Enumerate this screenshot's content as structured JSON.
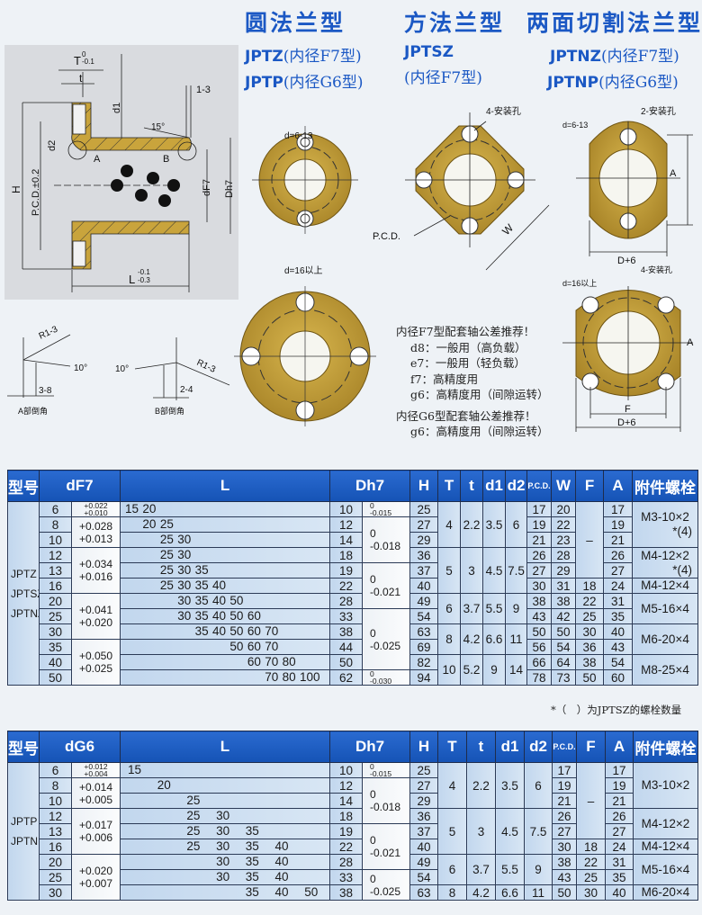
{
  "header": {
    "titles": [
      "圆法兰型",
      "方法兰型",
      "两面切割法兰型"
    ],
    "round": {
      "line1_model": "JPTZ",
      "line1_paren": "(内径F7型)",
      "line2_model": "JPTP",
      "line2_paren": "(内径G6型)"
    },
    "square": {
      "line1_model": "JPTSZ",
      "line2_paren": "(内径F7型)"
    },
    "cut": {
      "line1_model": "JPTNZ",
      "line1_paren": "(内径F7型)",
      "line2_model": "JPTNP",
      "line2_paren": "(内径G6型)"
    }
  },
  "section_drawing": {
    "T": "T",
    "T_tol_upper": "0",
    "T_tol_lower": "-0.1",
    "t": "t",
    "gap": "1-3",
    "d1": "d1",
    "angle": "15°",
    "d2": "d2",
    "A": "A",
    "B": "B",
    "H": "H",
    "pcd": "P.C.D.±0.2",
    "dF7": "dF7",
    "Dh7": "Dh7",
    "L": "L",
    "L_tol_upper": "-0.1",
    "L_tol_lower": "-0.3"
  },
  "chamfer": {
    "a": {
      "radius": "R1-3",
      "angle": "10°",
      "length": "3-8",
      "caption": "A部倒角"
    },
    "b": {
      "radius": "R1-3",
      "angle": "10°",
      "length": "2-4",
      "caption": "B部倒角"
    }
  },
  "flange_labels": {
    "round_small": "d=6-13",
    "round_large": "d=16以上",
    "square_holes": "4-安装孔",
    "square_pcd": "P.C.D.",
    "square_w": "W",
    "cut_small_d": "d=6-13",
    "cut_small_holes": "2-安装孔",
    "cut_small_a": "A",
    "cut_small_d6": "D+6",
    "cut_large_d": "d=16以上",
    "cut_large_holes": "4-安装孔",
    "cut_large_f": "F",
    "cut_large_d6": "D+6",
    "cut_large_a": "A"
  },
  "colors": {
    "brass": "#c9a43c",
    "header_blue": "#1b58c4",
    "table_header": "#1f5fc4",
    "cell_blue": "#c9dcef"
  },
  "notes": {
    "f7_title": "内径F7型配套轴公差推荐！",
    "f7_items": [
      "d8：一般用（高负载）",
      "e7：一般用（轻负载）",
      "f7：高精度用",
      "g6：高精度用（间隙运转）"
    ],
    "g6_title": "内径G6型配套轴公差推荐！",
    "g6_items": [
      "g6：高精度用（间隙运转）"
    ]
  },
  "table_f7": {
    "headers": [
      "型号",
      "dF7",
      "L",
      "Dh7",
      "H",
      "T",
      "t",
      "d1",
      "d2",
      "P.C.D.",
      "W",
      "F",
      "A",
      "附件螺栓"
    ],
    "models": [
      "JPTZ",
      "JPTSZ",
      "JPTNZ"
    ],
    "d": [
      "6",
      "8",
      "10",
      "12",
      "13",
      "16",
      "20",
      "25",
      "30",
      "35",
      "40",
      "50"
    ],
    "d_tol": [
      {
        "span": 1,
        "upper": "+0.022",
        "lower": "+0.010"
      },
      {
        "span": 2,
        "upper": "+0.028",
        "lower": "+0.013"
      },
      {
        "span": 3,
        "upper": "+0.034",
        "lower": "+0.016"
      },
      {
        "span": 3,
        "upper": "+0.041",
        "lower": "+0.020"
      },
      {
        "span": 3,
        "upper": "+0.050",
        "lower": "+0.025"
      }
    ],
    "L": [
      [
        "15",
        "20"
      ],
      [
        "20",
        "25"
      ],
      [
        "25",
        "30"
      ],
      [
        "25",
        "30"
      ],
      [
        "25",
        "30",
        "35"
      ],
      [
        "25",
        "30",
        "35",
        "40"
      ],
      [
        "30",
        "35",
        "40",
        "50"
      ],
      [
        "30",
        "35",
        "40",
        "50",
        "60"
      ],
      [
        "35",
        "40",
        "50",
        "60",
        "70"
      ],
      [
        "50",
        "60",
        "70"
      ],
      [
        "60",
        "70",
        "80"
      ],
      [
        "70",
        "80",
        "100"
      ]
    ],
    "D": [
      "10",
      "12",
      "14",
      "18",
      "19",
      "22",
      "28",
      "33",
      "38",
      "44",
      "50",
      "62"
    ],
    "D_tol": [
      {
        "span": 1,
        "upper": "0",
        "lower": "-0.015"
      },
      {
        "span": 3,
        "upper": "0",
        "lower": "-0.018"
      },
      {
        "span": 3,
        "upper": "0",
        "lower": "-0.021"
      },
      {
        "span": 4,
        "upper": "0",
        "lower": "-0.025"
      },
      {
        "span": 1,
        "upper": "0",
        "lower": "-0.030"
      }
    ],
    "H": [
      "25",
      "27",
      "29",
      "36",
      "37",
      "40",
      "49",
      "54",
      "63",
      "69",
      "82",
      "94"
    ],
    "groups": [
      {
        "span": 3,
        "T": "4",
        "t": "2.2",
        "d1": "3.5",
        "d2": "6"
      },
      {
        "span": 3,
        "T": "5",
        "t": "3",
        "d1": "4.5",
        "d2": "7.5"
      },
      {
        "span": 2,
        "T": "6",
        "t": "3.7",
        "d1": "5.5",
        "d2": "9"
      },
      {
        "span": 2,
        "T": "8",
        "t": "4.2",
        "d1": "6.6",
        "d2": "11"
      },
      {
        "span": 2,
        "T": "10",
        "t": "5.2",
        "d1": "9",
        "d2": "14"
      }
    ],
    "pcd": [
      "17",
      "19",
      "21",
      "26",
      "27",
      "30",
      "38",
      "43",
      "50",
      "56",
      "66",
      "78"
    ],
    "W": [
      "20",
      "22",
      "23",
      "28",
      "29",
      "31",
      "38",
      "42",
      "50",
      "54",
      "64",
      "73"
    ],
    "F_dash": "–",
    "F": [
      "18",
      "22",
      "25",
      "30",
      "36",
      "38",
      "50"
    ],
    "A": [
      "17",
      "19",
      "21",
      "26",
      "27",
      "24",
      "31",
      "35",
      "40",
      "43",
      "54",
      "60"
    ],
    "bolts": [
      {
        "span": 3,
        "text": "M3-10×2",
        "note": "*(4)"
      },
      {
        "span": 2,
        "text": "M4-12×2",
        "note": "*(4)"
      },
      {
        "span": 1,
        "text": "M4-12×4"
      },
      {
        "span": 2,
        "text": "M5-16×4"
      },
      {
        "span": 2,
        "text": "M6-20×4"
      },
      {
        "span": 2,
        "text": "M8-25×4"
      }
    ],
    "footnote": "*（　）为JPTSZ的螺栓数量"
  },
  "table_g6": {
    "headers": [
      "型号",
      "dG6",
      "L",
      "Dh7",
      "H",
      "T",
      "t",
      "d1",
      "d2",
      "P.C.D.",
      "F",
      "A",
      "附件螺栓"
    ],
    "models": [
      "JPTP",
      "JPTNP"
    ],
    "d": [
      "6",
      "8",
      "10",
      "12",
      "13",
      "16",
      "20",
      "25",
      "30"
    ],
    "d_tol": [
      {
        "span": 1,
        "upper": "+0.012",
        "lower": "+0.004"
      },
      {
        "span": 2,
        "upper": "+0.014",
        "lower": "+0.005"
      },
      {
        "span": 3,
        "upper": "+0.017",
        "lower": "+0.006"
      },
      {
        "span": 3,
        "upper": "+0.020",
        "lower": "+0.007"
      }
    ],
    "L": [
      [
        "15"
      ],
      [
        "20"
      ],
      [
        "25"
      ],
      [
        "25",
        "30"
      ],
      [
        "25",
        "30",
        "35"
      ],
      [
        "25",
        "30",
        "35",
        "40"
      ],
      [
        "30",
        "35",
        "40"
      ],
      [
        "30",
        "35",
        "40"
      ],
      [
        "35",
        "40",
        "50"
      ]
    ],
    "D": [
      "10",
      "12",
      "14",
      "18",
      "19",
      "22",
      "28",
      "33",
      "38"
    ],
    "D_tol": [
      {
        "span": 1,
        "upper": "0",
        "lower": "-0.015"
      },
      {
        "span": 3,
        "upper": "0",
        "lower": "-0.018"
      },
      {
        "span": 3,
        "upper": "0",
        "lower": "-0.021"
      },
      {
        "span": 2,
        "upper": "0",
        "lower": "-0.025"
      }
    ],
    "H": [
      "25",
      "27",
      "29",
      "36",
      "37",
      "40",
      "49",
      "54",
      "63"
    ],
    "groups": [
      {
        "span": 3,
        "T": "4",
        "t": "2.2",
        "d1": "3.5",
        "d2": "6"
      },
      {
        "span": 3,
        "T": "5",
        "t": "3",
        "d1": "4.5",
        "d2": "7.5"
      },
      {
        "span": 2,
        "T": "6",
        "t": "3.7",
        "d1": "5.5",
        "d2": "9"
      },
      {
        "span": 1,
        "T": "8",
        "t": "4.2",
        "d1": "6.6",
        "d2": "11"
      }
    ],
    "pcd": [
      "17",
      "19",
      "21",
      "26",
      "27",
      "30",
      "38",
      "43",
      "50"
    ],
    "F_dash": "–",
    "F": [
      "18",
      "22",
      "25",
      "30"
    ],
    "A": [
      "17",
      "19",
      "21",
      "26",
      "27",
      "24",
      "31",
      "35",
      "40"
    ],
    "bolts": [
      {
        "span": 3,
        "text": "M3-10×2"
      },
      {
        "span": 2,
        "text": "M4-12×2"
      },
      {
        "span": 1,
        "text": "M4-12×4"
      },
      {
        "span": 2,
        "text": "M5-16×4"
      },
      {
        "span": 1,
        "text": "M6-20×4"
      }
    ]
  }
}
